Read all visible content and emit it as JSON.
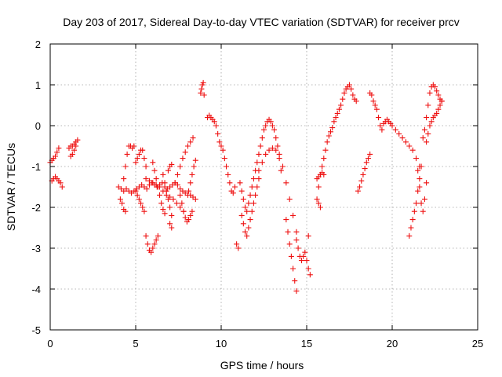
{
  "chart_data": {
    "type": "scatter",
    "title": "Day 203 of 2017, Sidereal Day-to-day VTEC variation (SDTVAR) for receiver prcv",
    "xlabel": "GPS time / hours",
    "ylabel": "SDTVAR / TECUs",
    "xlim": [
      0,
      25
    ],
    "ylim": [
      -5,
      2
    ],
    "grid": true,
    "marker": "+",
    "marker_color": "#ee1111",
    "x_ticks": [
      {
        "value": 0,
        "label": "0"
      },
      {
        "value": 5,
        "label": "5"
      },
      {
        "value": 10,
        "label": "10"
      },
      {
        "value": 15,
        "label": "15"
      },
      {
        "value": 20,
        "label": "20"
      },
      {
        "value": 25,
        "label": "25"
      }
    ],
    "y_ticks": [
      {
        "value": 2,
        "label": "2"
      },
      {
        "value": 1,
        "label": "1"
      },
      {
        "value": 0,
        "label": "0"
      },
      {
        "value": -1,
        "label": "-1"
      },
      {
        "value": -2,
        "label": "-2"
      },
      {
        "value": -3,
        "label": "-3"
      },
      {
        "value": -4,
        "label": "-4"
      },
      {
        "value": -5,
        "label": "-5"
      }
    ],
    "series": [
      {
        "name": "s01",
        "x": [
          0.0,
          0.1,
          0.2,
          0.3,
          0.4,
          0.5
        ],
        "y": [
          -0.9,
          -0.85,
          -0.8,
          -0.75,
          -0.65,
          -0.55
        ]
      },
      {
        "name": "s02",
        "x": [
          0.1,
          0.2,
          0.3,
          0.4,
          0.5,
          0.6,
          0.7
        ],
        "y": [
          -1.35,
          -1.3,
          -1.25,
          -1.3,
          -1.35,
          -1.4,
          -1.5
        ]
      },
      {
        "name": "s03",
        "x": [
          1.1,
          1.2,
          1.3,
          1.4,
          1.5,
          1.6
        ],
        "y": [
          -0.55,
          -0.5,
          -0.5,
          -0.45,
          -0.4,
          -0.35
        ]
      },
      {
        "name": "s04",
        "x": [
          1.2,
          1.3,
          1.4,
          1.5
        ],
        "y": [
          -0.75,
          -0.7,
          -0.6,
          -0.5
        ]
      },
      {
        "name": "s05",
        "x": [
          4.0,
          4.15,
          4.3,
          4.45,
          4.6,
          4.75,
          4.9,
          5.05,
          5.2,
          5.35,
          5.5,
          5.65,
          5.8,
          5.95,
          6.1,
          6.25,
          6.4,
          6.55,
          6.7,
          6.85,
          7.0,
          7.15,
          7.3,
          7.45,
          7.6,
          7.75,
          7.9,
          8.05,
          8.2,
          8.35,
          8.5
        ],
        "y": [
          -1.5,
          -1.55,
          -1.6,
          -1.55,
          -1.6,
          -1.65,
          -1.6,
          -1.55,
          -1.5,
          -1.45,
          -1.5,
          -1.55,
          -1.45,
          -1.4,
          -1.45,
          -1.5,
          -1.45,
          -1.4,
          -1.5,
          -1.55,
          -1.5,
          -1.45,
          -1.4,
          -1.45,
          -1.55,
          -1.6,
          -1.65,
          -1.7,
          -1.7,
          -1.75,
          -1.8
        ]
      },
      {
        "name": "s06",
        "x": [
          4.1,
          4.2,
          4.3,
          4.4
        ],
        "y": [
          -1.8,
          -1.9,
          -2.05,
          -2.1
        ]
      },
      {
        "name": "s07",
        "x": [
          4.3,
          4.4,
          4.5,
          4.6,
          4.7,
          4.8,
          4.9
        ],
        "y": [
          -1.3,
          -1.0,
          -0.7,
          -0.5,
          -0.5,
          -0.55,
          -0.5
        ]
      },
      {
        "name": "s08",
        "x": [
          5.0,
          5.1,
          5.2,
          5.3,
          5.4,
          5.5,
          5.6
        ],
        "y": [
          -0.9,
          -0.8,
          -0.7,
          -0.6,
          -0.6,
          -0.8,
          -1.0
        ]
      },
      {
        "name": "s09",
        "x": [
          5.0,
          5.1,
          5.2,
          5.3,
          5.4,
          5.5
        ],
        "y": [
          -1.6,
          -1.7,
          -1.8,
          -1.9,
          -2.0,
          -2.1
        ]
      },
      {
        "name": "s10",
        "x": [
          5.6,
          5.7,
          5.8,
          5.9,
          6.0,
          6.1,
          6.2,
          6.3
        ],
        "y": [
          -2.7,
          -2.9,
          -3.05,
          -3.1,
          -3.0,
          -2.9,
          -2.8,
          -2.7
        ]
      },
      {
        "name": "s11",
        "x": [
          5.6,
          5.8,
          6.0,
          6.2,
          6.4,
          6.6,
          6.8,
          7.0,
          7.2,
          7.4,
          7.6,
          7.8
        ],
        "y": [
          -1.3,
          -1.35,
          -1.4,
          -1.45,
          -1.5,
          -1.6,
          -1.7,
          -1.75,
          -1.8,
          -1.9,
          -2.0,
          -2.1
        ]
      },
      {
        "name": "s12",
        "x": [
          6.0,
          6.1,
          6.2,
          6.3,
          6.4,
          6.5,
          6.6,
          6.7
        ],
        "y": [
          -0.9,
          -1.1,
          -1.3,
          -1.5,
          -1.7,
          -1.9,
          -2.05,
          -2.15
        ]
      },
      {
        "name": "s13",
        "x": [
          6.6,
          6.7,
          6.8,
          6.9,
          7.0,
          7.1
        ],
        "y": [
          -1.2,
          -1.4,
          -1.6,
          -1.8,
          -2.0,
          -2.2
        ]
      },
      {
        "name": "s14",
        "x": [
          6.9,
          7.0,
          7.1
        ],
        "y": [
          -1.1,
          -1.0,
          -0.95
        ]
      },
      {
        "name": "s15",
        "x": [
          7.0,
          7.1
        ],
        "y": [
          -2.4,
          -2.5
        ]
      },
      {
        "name": "s16",
        "x": [
          7.3,
          7.45,
          7.6,
          7.75,
          7.9,
          8.05,
          8.2,
          8.35
        ],
        "y": [
          -1.4,
          -1.2,
          -1.0,
          -0.8,
          -0.65,
          -0.5,
          -0.4,
          -0.3
        ]
      },
      {
        "name": "s17",
        "x": [
          7.6,
          7.7,
          7.8,
          7.9,
          8.0,
          8.1,
          8.2,
          8.3
        ],
        "y": [
          -1.7,
          -1.9,
          -2.1,
          -2.25,
          -2.35,
          -2.3,
          -2.2,
          -2.1
        ]
      },
      {
        "name": "s18",
        "x": [
          8.1,
          8.2,
          8.3,
          8.4,
          8.5
        ],
        "y": [
          -1.6,
          -1.4,
          -1.2,
          -1.0,
          -0.85
        ]
      },
      {
        "name": "s19",
        "x": [
          8.8,
          8.85,
          8.9,
          8.95,
          9.0
        ],
        "y": [
          0.8,
          0.9,
          1.0,
          1.05,
          0.75
        ]
      },
      {
        "name": "s20",
        "x": [
          9.2,
          9.3,
          9.4,
          9.5,
          9.6,
          9.7,
          9.8,
          9.9,
          10.0,
          10.1,
          10.2,
          10.3,
          10.4,
          10.5,
          10.6,
          10.7,
          10.8
        ],
        "y": [
          0.2,
          0.25,
          0.2,
          0.15,
          0.1,
          0.0,
          -0.2,
          -0.4,
          -0.5,
          -0.6,
          -0.8,
          -1.0,
          -1.2,
          -1.4,
          -1.6,
          -1.65,
          -1.5
        ]
      },
      {
        "name": "s21",
        "x": [
          10.9,
          11.0
        ],
        "y": [
          -2.9,
          -3.0
        ]
      },
      {
        "name": "s22",
        "x": [
          11.1,
          11.2,
          11.3,
          11.4,
          11.5,
          11.6,
          11.7,
          11.8,
          11.9,
          12.0,
          12.1,
          12.2,
          12.3,
          12.4,
          12.5,
          12.6,
          12.7,
          12.8,
          12.9,
          13.0,
          13.1,
          13.2,
          13.3,
          13.4,
          13.5
        ],
        "y": [
          -1.4,
          -1.6,
          -1.8,
          -2.0,
          -2.1,
          -1.9,
          -1.7,
          -1.5,
          -1.3,
          -1.1,
          -0.9,
          -0.7,
          -0.5,
          -0.3,
          -0.1,
          0.0,
          0.1,
          0.15,
          0.1,
          0.0,
          -0.1,
          -0.3,
          -0.5,
          -0.8,
          -1.1
        ]
      },
      {
        "name": "s23",
        "x": [
          11.2,
          11.3,
          11.4,
          11.5,
          11.6,
          11.7,
          11.8,
          11.9,
          12.0,
          12.1,
          12.2
        ],
        "y": [
          -2.2,
          -2.4,
          -2.6,
          -2.7,
          -2.5,
          -2.3,
          -2.1,
          -1.9,
          -1.7,
          -1.5,
          -1.3
        ]
      },
      {
        "name": "s24",
        "x": [
          12.2,
          12.4,
          12.6,
          12.8,
          13.0,
          13.2,
          13.4,
          13.6,
          13.8,
          14.0,
          14.2,
          14.4
        ],
        "y": [
          -1.1,
          -0.9,
          -0.7,
          -0.6,
          -0.55,
          -0.6,
          -0.7,
          -1.0,
          -1.4,
          -1.8,
          -2.2,
          -2.6
        ]
      },
      {
        "name": "s25",
        "x": [
          13.8,
          13.9,
          14.0,
          14.1,
          14.2,
          14.3,
          14.4
        ],
        "y": [
          -2.3,
          -2.6,
          -2.9,
          -3.2,
          -3.5,
          -3.8,
          -4.05
        ]
      },
      {
        "name": "s26",
        "x": [
          14.4,
          14.5,
          14.6,
          14.7,
          14.8,
          14.9,
          15.0,
          15.1
        ],
        "y": [
          -2.8,
          -3.0,
          -3.2,
          -3.3,
          -3.2,
          -3.1,
          -3.3,
          -3.5
        ]
      },
      {
        "name": "s27",
        "x": [
          15.1,
          15.2
        ],
        "y": [
          -2.7,
          -3.65
        ]
      },
      {
        "name": "s28",
        "x": [
          15.6,
          15.7,
          15.8,
          15.9,
          16.0,
          16.1,
          16.2,
          16.3,
          16.4,
          16.5,
          16.6,
          16.7,
          16.8,
          16.9,
          17.0,
          17.1,
          17.2,
          17.3,
          17.4,
          17.5,
          17.6,
          17.7,
          17.8,
          17.9
        ],
        "y": [
          -1.8,
          -1.5,
          -1.2,
          -1.0,
          -0.8,
          -0.6,
          -0.4,
          -0.25,
          -0.15,
          -0.05,
          0.1,
          0.2,
          0.3,
          0.4,
          0.5,
          0.65,
          0.8,
          0.9,
          0.95,
          1.0,
          0.9,
          0.75,
          0.65,
          0.6
        ]
      },
      {
        "name": "s29",
        "x": [
          15.6,
          15.7,
          15.8,
          15.9,
          16.0
        ],
        "y": [
          -1.3,
          -1.25,
          -1.2,
          -1.15,
          -1.2
        ]
      },
      {
        "name": "s30",
        "x": [
          15.7,
          15.8
        ],
        "y": [
          -1.9,
          -2.0
        ]
      },
      {
        "name": "s31",
        "x": [
          18.0,
          18.1,
          18.2,
          18.3,
          18.4,
          18.5,
          18.6,
          18.7
        ],
        "y": [
          -1.6,
          -1.5,
          -1.35,
          -1.2,
          -1.05,
          -0.9,
          -0.8,
          -0.7
        ]
      },
      {
        "name": "s32",
        "x": [
          18.7,
          18.8,
          18.9,
          19.0,
          19.1,
          19.2,
          19.3,
          19.4,
          19.5,
          19.6,
          19.7,
          19.8,
          19.9,
          20.0,
          20.2,
          20.4,
          20.6,
          20.8,
          21.0,
          21.2,
          21.4,
          21.6
        ],
        "y": [
          0.8,
          0.75,
          0.6,
          0.5,
          0.4,
          0.2,
          0.0,
          -0.1,
          0.05,
          0.1,
          0.15,
          0.1,
          0.05,
          0.0,
          -0.1,
          -0.2,
          -0.3,
          -0.4,
          -0.5,
          -0.6,
          -0.8,
          -1.0
        ]
      },
      {
        "name": "s33",
        "x": [
          21.0,
          21.1,
          21.2,
          21.3,
          21.4,
          21.5,
          21.6,
          21.7
        ],
        "y": [
          -2.7,
          -2.5,
          -2.3,
          -2.1,
          -1.9,
          -1.6,
          -1.3,
          -1.0
        ]
      },
      {
        "name": "s34",
        "x": [
          21.5,
          21.6,
          21.7,
          21.8,
          21.9,
          22.0
        ],
        "y": [
          -1.1,
          -1.5,
          -1.9,
          -2.1,
          -1.8,
          -1.4
        ]
      },
      {
        "name": "s35",
        "x": [
          21.8,
          21.9,
          22.0,
          22.1,
          22.2,
          22.3,
          22.4,
          22.5,
          22.6,
          22.7,
          22.8,
          22.9
        ],
        "y": [
          -0.3,
          -0.1,
          0.2,
          0.5,
          0.8,
          0.95,
          1.0,
          0.95,
          0.85,
          0.75,
          0.65,
          0.6
        ]
      },
      {
        "name": "s36",
        "x": [
          22.0,
          22.1,
          22.2,
          22.3,
          22.4,
          22.5,
          22.6,
          22.7,
          22.8,
          22.9
        ],
        "y": [
          -0.4,
          -0.2,
          0.0,
          0.1,
          0.2,
          0.25,
          0.3,
          0.4,
          0.5,
          0.6
        ]
      }
    ]
  }
}
